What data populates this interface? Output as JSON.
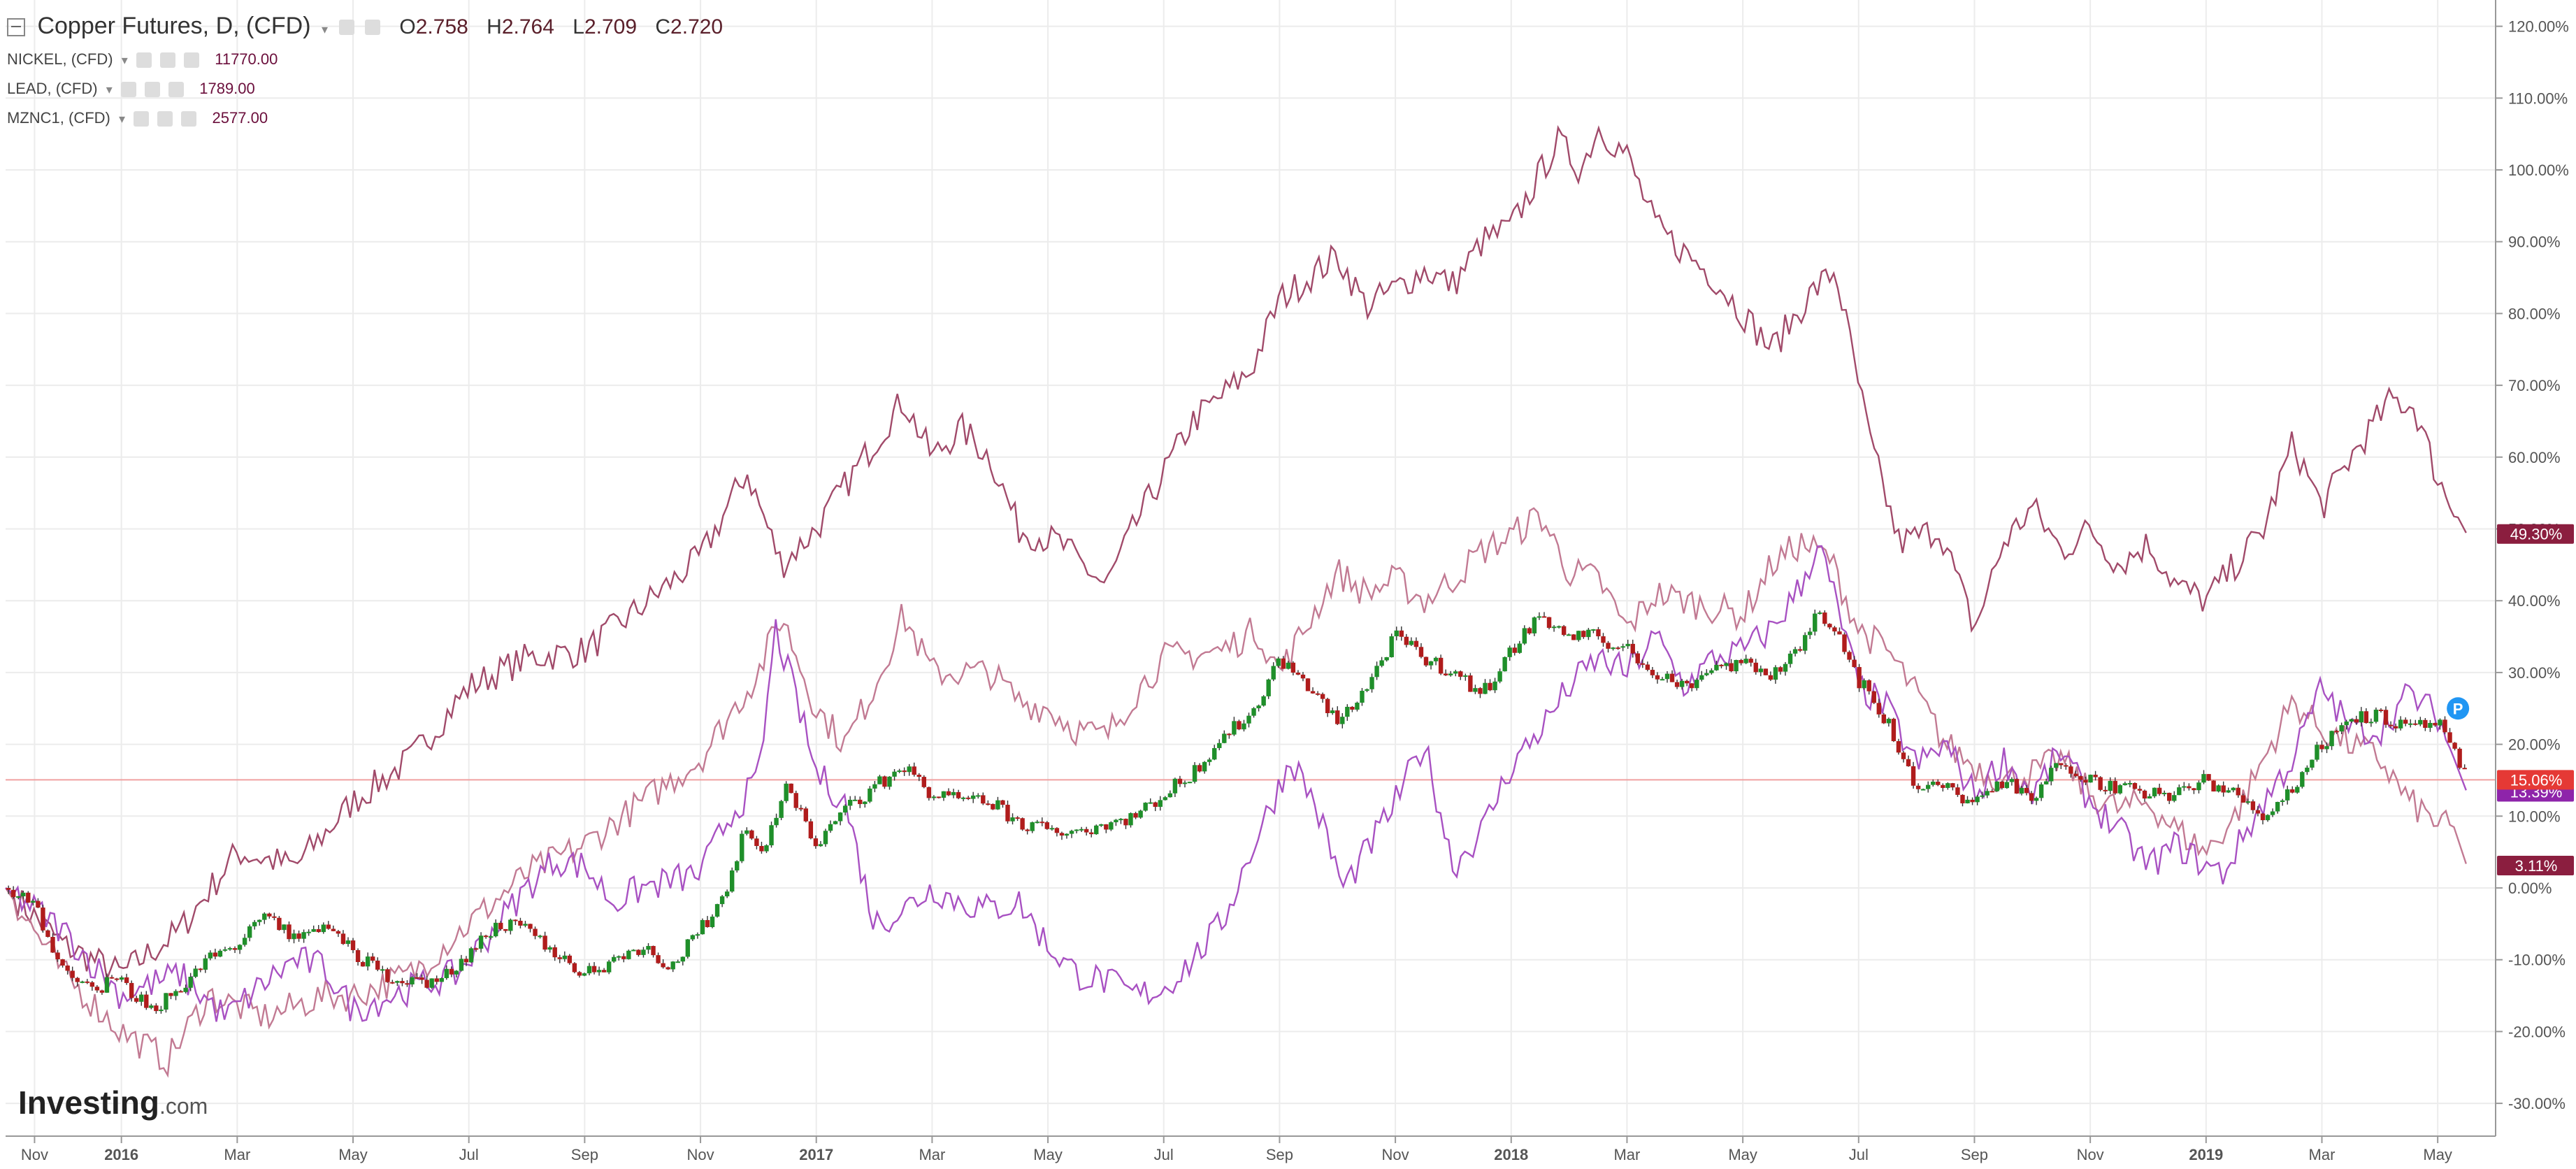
{
  "header": {
    "main": {
      "collapse_icon": "minus-box-icon",
      "title": "Copper Futures, D, (CFD)",
      "ohlc": {
        "o_label": "O",
        "o": "2.758",
        "h_label": "H",
        "h": "2.764",
        "l_label": "L",
        "l": "2.709",
        "c_label": "C",
        "c": "2.720"
      }
    },
    "subs": [
      {
        "name": "NICKEL, (CFD)",
        "value": "11770.00"
      },
      {
        "name": "LEAD, (CFD)",
        "value": "1789.00"
      },
      {
        "name": "MZNC1, (CFD)",
        "value": "2577.00"
      }
    ]
  },
  "chart_data": {
    "type": "line",
    "y_unit": "percent",
    "ylim": [
      -33,
      122
    ],
    "y_ticks": [
      "120.00%",
      "110.00%",
      "100.00%",
      "90.00%",
      "80.00%",
      "70.00%",
      "60.00%",
      "50.00%",
      "40.00%",
      "30.00%",
      "20.00%",
      "10.00%",
      "0.00%",
      "-10.00%",
      "-20.00%",
      "-30.00%"
    ],
    "x_tick_labels": [
      "Nov",
      "2016",
      "Mar",
      "May",
      "Jul",
      "Sep",
      "Nov",
      "2017",
      "Mar",
      "May",
      "Jul",
      "Sep",
      "Nov",
      "2018",
      "Mar",
      "May",
      "Jul",
      "Sep",
      "Nov",
      "2019",
      "Mar",
      "May"
    ],
    "x_tick_positions": [
      0.5,
      2,
      4,
      6,
      8,
      10,
      12,
      14,
      16,
      18,
      20,
      22,
      24,
      26,
      28,
      30,
      32,
      34,
      36,
      38,
      40,
      42
    ],
    "x_range": [
      0,
      43
    ],
    "grid": true,
    "series": [
      {
        "name": "NICKEL, (CFD)",
        "color": "#a14a6a",
        "last_label": "49.30%",
        "points": [
          [
            0,
            0
          ],
          [
            1,
            -8
          ],
          [
            2,
            -12
          ],
          [
            3,
            -6
          ],
          [
            4,
            5
          ],
          [
            5,
            3
          ],
          [
            6,
            12
          ],
          [
            7,
            18
          ],
          [
            8,
            28
          ],
          [
            9,
            32
          ],
          [
            10,
            33
          ],
          [
            10.8,
            38
          ],
          [
            12,
            46
          ],
          [
            12.8,
            58
          ],
          [
            13.4,
            45
          ],
          [
            14,
            50
          ],
          [
            15,
            62
          ],
          [
            15.5,
            68
          ],
          [
            16,
            60
          ],
          [
            16.5,
            64
          ],
          [
            17,
            60
          ],
          [
            17.5,
            50
          ],
          [
            18.2,
            48
          ],
          [
            19,
            42
          ],
          [
            19.6,
            52
          ],
          [
            20.5,
            65
          ],
          [
            21.5,
            72
          ],
          [
            22,
            82
          ],
          [
            23,
            88
          ],
          [
            23.5,
            81
          ],
          [
            24.5,
            86
          ],
          [
            25,
            84
          ],
          [
            25.5,
            90
          ],
          [
            26,
            92
          ],
          [
            26.8,
            104
          ],
          [
            27.2,
            100
          ],
          [
            27.5,
            106
          ],
          [
            28,
            102
          ],
          [
            28.5,
            92
          ],
          [
            29.5,
            85
          ],
          [
            30.5,
            75
          ],
          [
            31.2,
            83
          ],
          [
            31.6,
            86
          ],
          [
            32.2,
            62
          ],
          [
            32.7,
            48
          ],
          [
            33.4,
            50
          ],
          [
            34,
            36
          ],
          [
            34.5,
            48
          ],
          [
            35,
            53
          ],
          [
            35.5,
            47
          ],
          [
            36,
            50
          ],
          [
            36.5,
            45
          ],
          [
            37,
            48
          ],
          [
            37.5,
            42
          ],
          [
            38,
            40
          ],
          [
            39,
            50
          ],
          [
            39.5,
            62
          ],
          [
            40,
            53
          ],
          [
            40.5,
            60
          ],
          [
            41.2,
            68
          ],
          [
            41.6,
            67
          ],
          [
            42,
            57
          ],
          [
            42.5,
            49.3
          ]
        ]
      },
      {
        "name": "LEAD, (CFD)",
        "color": "#c27a93",
        "last_label": "3.11%",
        "points": [
          [
            0,
            0
          ],
          [
            1,
            -12
          ],
          [
            2,
            -20
          ],
          [
            2.8,
            -24
          ],
          [
            3.5,
            -15
          ],
          [
            4.5,
            -18
          ],
          [
            5.5,
            -15
          ],
          [
            6,
            -15
          ],
          [
            7,
            -12
          ],
          [
            8,
            -5
          ],
          [
            9,
            2
          ],
          [
            10,
            6
          ],
          [
            11,
            12
          ],
          [
            12,
            18
          ],
          [
            13,
            30
          ],
          [
            13.4,
            38
          ],
          [
            14,
            25
          ],
          [
            14.5,
            20
          ],
          [
            15,
            28
          ],
          [
            15.5,
            38
          ],
          [
            16,
            30
          ],
          [
            16.5,
            30
          ],
          [
            17,
            30
          ],
          [
            17.5,
            26
          ],
          [
            18,
            25
          ],
          [
            18.5,
            22
          ],
          [
            19,
            21
          ],
          [
            19.5,
            27
          ],
          [
            20,
            32
          ],
          [
            21,
            33
          ],
          [
            21.6,
            36
          ],
          [
            22,
            30
          ],
          [
            23,
            44
          ],
          [
            23.5,
            41
          ],
          [
            24,
            43
          ],
          [
            24.5,
            40
          ],
          [
            25,
            43
          ],
          [
            25.5,
            47
          ],
          [
            26,
            49
          ],
          [
            26.5,
            52
          ],
          [
            27,
            44
          ],
          [
            27.5,
            43
          ],
          [
            28,
            36
          ],
          [
            28.5,
            41
          ],
          [
            29,
            40
          ],
          [
            30,
            38
          ],
          [
            30.5,
            45
          ],
          [
            31,
            48
          ],
          [
            31.5,
            46
          ],
          [
            32,
            36
          ],
          [
            32.5,
            33
          ],
          [
            33,
            27
          ],
          [
            33.5,
            20
          ],
          [
            34,
            17
          ],
          [
            34.5,
            15
          ],
          [
            35,
            16
          ],
          [
            35.5,
            18
          ],
          [
            36,
            13
          ],
          [
            36.5,
            11
          ],
          [
            37,
            12
          ],
          [
            37.5,
            8
          ],
          [
            38,
            5
          ],
          [
            38.5,
            10
          ],
          [
            39,
            18
          ],
          [
            39.5,
            26
          ],
          [
            40,
            22
          ],
          [
            40.5,
            20
          ],
          [
            41,
            18
          ],
          [
            41.5,
            12
          ],
          [
            42,
            9
          ],
          [
            42.3,
            8
          ],
          [
            42.5,
            3.11
          ]
        ]
      },
      {
        "name": "MZNC1, (CFD)",
        "color": "#a851c2",
        "last_label": "13.39%",
        "points": [
          [
            0,
            0
          ],
          [
            1,
            -6
          ],
          [
            2,
            -15
          ],
          [
            3,
            -12
          ],
          [
            3.8,
            -18
          ],
          [
            4.5,
            -13
          ],
          [
            5,
            -10
          ],
          [
            5.5,
            -11
          ],
          [
            6,
            -17
          ],
          [
            7,
            -14
          ],
          [
            7.8,
            -12
          ],
          [
            8.5,
            -5
          ],
          [
            9,
            0
          ],
          [
            9.5,
            4
          ],
          [
            10,
            3
          ],
          [
            10.5,
            -2
          ],
          [
            11,
            0
          ],
          [
            12,
            2
          ],
          [
            12.5,
            10
          ],
          [
            13,
            15
          ],
          [
            13.3,
            36
          ],
          [
            13.7,
            25
          ],
          [
            14,
            16
          ],
          [
            14.5,
            12
          ],
          [
            15,
            -5
          ],
          [
            15.5,
            -3
          ],
          [
            16,
            0
          ],
          [
            16.5,
            -2
          ],
          [
            17,
            -3
          ],
          [
            17.5,
            -2
          ],
          [
            18,
            -8
          ],
          [
            18.5,
            -12
          ],
          [
            19,
            -13
          ],
          [
            19.5,
            -15
          ],
          [
            20,
            -14
          ],
          [
            20.5,
            -10
          ],
          [
            21,
            -5
          ],
          [
            21.5,
            5
          ],
          [
            22.2,
            18
          ],
          [
            22.6,
            12
          ],
          [
            23.1,
            0
          ],
          [
            23.5,
            5
          ],
          [
            24,
            12
          ],
          [
            24.5,
            20
          ],
          [
            25,
            3
          ],
          [
            25.5,
            8
          ],
          [
            26,
            17
          ],
          [
            26.5,
            22
          ],
          [
            27,
            28
          ],
          [
            27.5,
            32
          ],
          [
            28,
            30
          ],
          [
            28.5,
            35
          ],
          [
            29,
            28
          ],
          [
            29.5,
            32
          ],
          [
            30,
            33
          ],
          [
            30.5,
            36
          ],
          [
            31,
            42
          ],
          [
            31.3,
            48
          ],
          [
            31.6,
            40
          ],
          [
            32,
            28
          ],
          [
            32.5,
            25
          ],
          [
            33,
            17
          ],
          [
            33.5,
            20
          ],
          [
            34,
            13
          ],
          [
            34.5,
            18
          ],
          [
            35,
            13
          ],
          [
            35.5,
            19
          ],
          [
            36,
            12
          ],
          [
            36.5,
            8
          ],
          [
            37,
            3
          ],
          [
            37.5,
            6
          ],
          [
            38,
            3
          ],
          [
            38.3,
            2
          ],
          [
            38.7,
            8
          ],
          [
            39,
            12
          ],
          [
            39.5,
            18
          ],
          [
            40,
            28
          ],
          [
            40.5,
            22
          ],
          [
            41,
            22
          ],
          [
            41.5,
            27
          ],
          [
            42,
            24
          ],
          [
            42.5,
            13.39
          ]
        ]
      },
      {
        "name": "Copper Futures, D, (CFD)",
        "type": "candlestick",
        "last_label": "15.06%",
        "points": [
          [
            0,
            0
          ],
          [
            0.5,
            -2
          ],
          [
            1,
            -12
          ],
          [
            1.5,
            -14
          ],
          [
            2,
            -13
          ],
          [
            2.5,
            -17
          ],
          [
            3,
            -14
          ],
          [
            3.5,
            -10
          ],
          [
            4,
            -8
          ],
          [
            4.5,
            -4
          ],
          [
            5,
            -7
          ],
          [
            5.5,
            -5
          ],
          [
            6,
            -9
          ],
          [
            6.5,
            -12
          ],
          [
            7,
            -13
          ],
          [
            7.5,
            -13
          ],
          [
            8,
            -9
          ],
          [
            8.5,
            -5
          ],
          [
            9,
            -6
          ],
          [
            9.5,
            -9
          ],
          [
            10,
            -12
          ],
          [
            10.5,
            -10
          ],
          [
            11,
            -8
          ],
          [
            11.5,
            -11
          ],
          [
            12,
            -6
          ],
          [
            12.4,
            -1
          ],
          [
            12.8,
            9
          ],
          [
            13,
            4
          ],
          [
            13.5,
            14
          ],
          [
            14,
            6
          ],
          [
            14.5,
            11
          ],
          [
            15,
            14
          ],
          [
            15.5,
            17
          ],
          [
            16,
            13
          ],
          [
            16.5,
            12
          ],
          [
            17,
            12
          ],
          [
            17.5,
            9
          ],
          [
            18,
            8
          ],
          [
            18.5,
            8
          ],
          [
            19,
            9
          ],
          [
            19.5,
            10
          ],
          [
            20,
            13
          ],
          [
            20.5,
            16
          ],
          [
            21,
            21
          ],
          [
            21.5,
            24
          ],
          [
            22,
            32
          ],
          [
            22.5,
            28
          ],
          [
            23,
            23
          ],
          [
            23.5,
            28
          ],
          [
            24,
            35
          ],
          [
            24.5,
            32
          ],
          [
            25,
            30
          ],
          [
            25.5,
            27
          ],
          [
            26,
            33
          ],
          [
            26.5,
            38
          ],
          [
            27,
            35
          ],
          [
            27.5,
            35
          ],
          [
            28,
            33
          ],
          [
            28.5,
            30
          ],
          [
            29,
            28
          ],
          [
            29.5,
            31
          ],
          [
            30,
            31
          ],
          [
            30.5,
            30
          ],
          [
            31,
            33
          ],
          [
            31.3,
            39
          ],
          [
            31.7,
            35
          ],
          [
            32,
            29
          ],
          [
            32.5,
            23
          ],
          [
            33,
            14
          ],
          [
            33.5,
            14
          ],
          [
            34,
            12
          ],
          [
            34.5,
            15
          ],
          [
            35,
            12
          ],
          [
            35.5,
            18
          ],
          [
            36,
            15
          ],
          [
            36.5,
            14
          ],
          [
            37,
            13
          ],
          [
            37.5,
            13
          ],
          [
            38,
            15
          ],
          [
            38.5,
            13
          ],
          [
            39,
            10
          ],
          [
            39.5,
            14
          ],
          [
            40,
            20
          ],
          [
            40.5,
            24
          ],
          [
            41,
            24
          ],
          [
            41.5,
            22
          ],
          [
            42,
            23
          ],
          [
            42.5,
            15.06
          ]
        ]
      }
    ],
    "hline_label": "15.06%"
  },
  "logo": {
    "brand": "Investing",
    "suffix": ".com"
  },
  "marker": {
    "letter": "P",
    "color": "#2196f3"
  },
  "colors": {
    "grid": "#ececec",
    "axis": "#999999",
    "hline": "#f0a0a0",
    "candle_up": "#1f8f2a",
    "candle_down": "#b01c1c"
  }
}
